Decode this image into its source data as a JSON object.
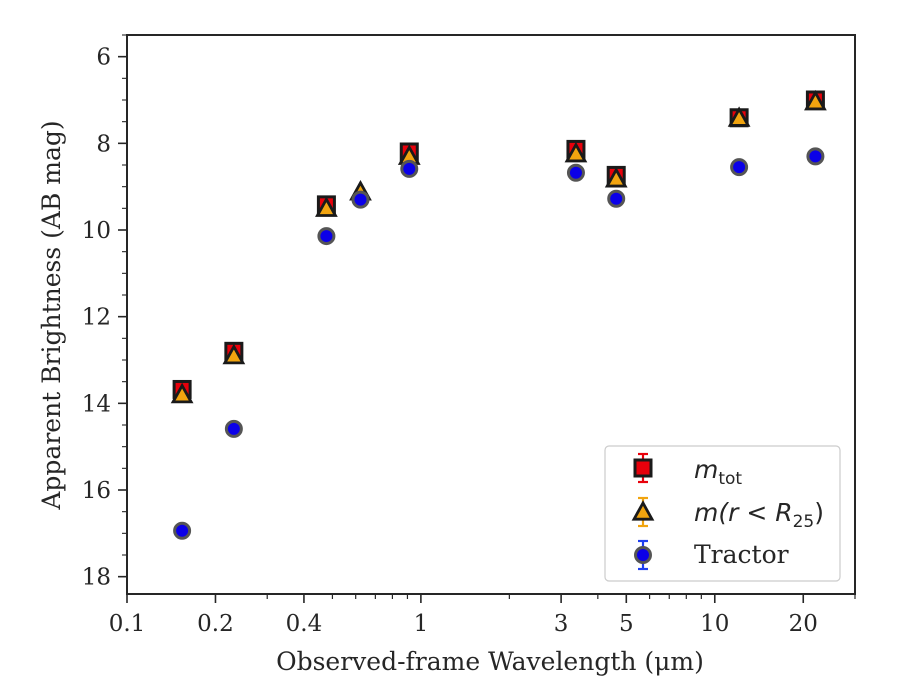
{
  "chart_data": {
    "type": "scatter",
    "title": "",
    "xlabel": "Observed-frame Wavelength (μm)",
    "ylabel": "Apparent Brightness (AB mag)",
    "x_scale": "log",
    "xlim": [
      0.1,
      30
    ],
    "ylim": [
      18.4,
      5.5
    ],
    "y_inverted": true,
    "x_ticks": [
      0.1,
      0.2,
      0.4,
      1,
      3,
      5,
      10,
      20
    ],
    "x_tick_labels": [
      "0.1",
      "0.2",
      "0.4",
      "1",
      "3",
      "5",
      "10",
      "20"
    ],
    "y_ticks": [
      6,
      8,
      10,
      12,
      14,
      16,
      18
    ],
    "y_tick_labels": [
      "6",
      "8",
      "10",
      "12",
      "14",
      "16",
      "18"
    ],
    "grid": false,
    "legend_position": "bottom-right",
    "series": [
      {
        "name_parts": {
          "base": "m",
          "sub": "tot"
        },
        "marker": "square",
        "color": "#e8000b",
        "edge_color": "#1a1a1a",
        "points": [
          {
            "x": 0.154,
            "y": 13.68
          },
          {
            "x": 0.231,
            "y": 12.8
          },
          {
            "x": 0.477,
            "y": 9.42
          },
          {
            "x": 0.913,
            "y": 8.2
          },
          {
            "x": 3.37,
            "y": 8.14
          },
          {
            "x": 4.62,
            "y": 8.74
          },
          {
            "x": 12.1,
            "y": 7.41
          },
          {
            "x": 22.0,
            "y": 7.0
          }
        ]
      },
      {
        "name_parts": {
          "base": "m(r < R",
          "sub": "25",
          "suffix": ")"
        },
        "marker": "triangle",
        "color": "#f1a40f",
        "edge_color": "#1a1a1a",
        "points": [
          {
            "x": 0.154,
            "y": 13.8
          },
          {
            "x": 0.231,
            "y": 12.9
          },
          {
            "x": 0.477,
            "y": 9.5
          },
          {
            "x": 0.623,
            "y": 9.12
          },
          {
            "x": 0.913,
            "y": 8.3
          },
          {
            "x": 3.37,
            "y": 8.24
          },
          {
            "x": 4.62,
            "y": 8.82
          },
          {
            "x": 12.1,
            "y": 7.42
          },
          {
            "x": 22.0,
            "y": 7.04
          }
        ]
      },
      {
        "name": "Tractor",
        "marker": "circle",
        "color": "#0b00e8",
        "edge_color": "#555555",
        "points": [
          {
            "x": 0.154,
            "y": 16.94
          },
          {
            "x": 0.231,
            "y": 14.59
          },
          {
            "x": 0.477,
            "y": 10.14
          },
          {
            "x": 0.623,
            "y": 9.3
          },
          {
            "x": 0.913,
            "y": 8.59
          },
          {
            "x": 3.37,
            "y": 8.68
          },
          {
            "x": 4.62,
            "y": 9.28
          },
          {
            "x": 12.1,
            "y": 8.55
          },
          {
            "x": 22.0,
            "y": 8.3
          }
        ]
      }
    ]
  }
}
